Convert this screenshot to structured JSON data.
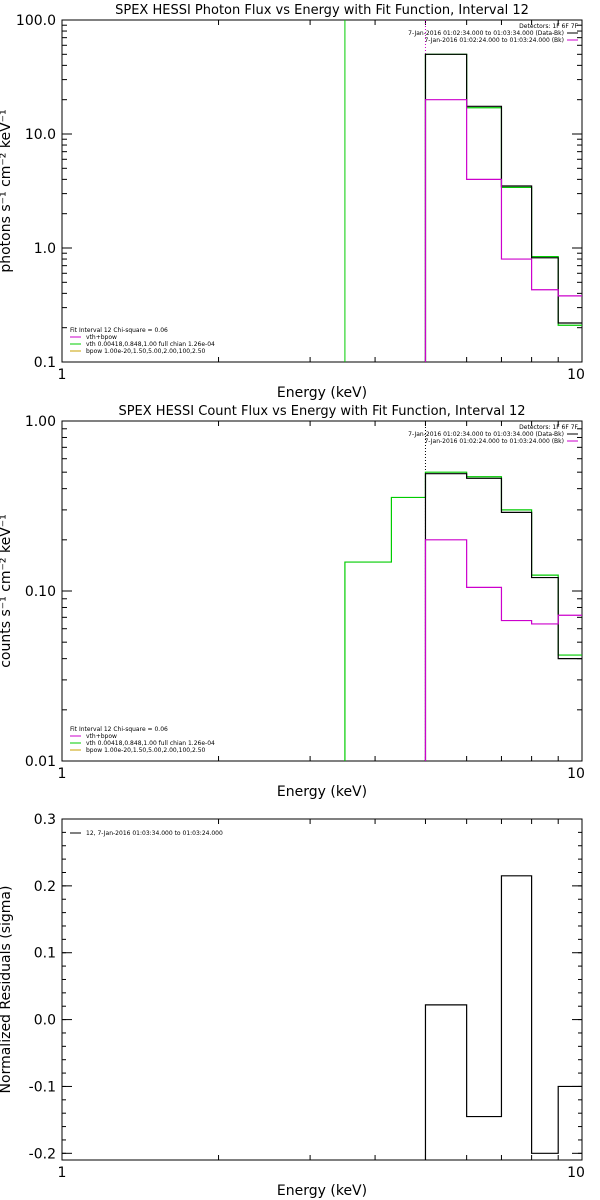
{
  "colors": {
    "data": "#000000",
    "model": "#00cc00",
    "vth": "#cc00cc",
    "bpow": "#c8a000",
    "bk": "#cc00cc"
  },
  "chart_data": [
    {
      "type": "line",
      "title": "SPEX HESSI Photon Flux vs Energy with Fit Function, Interval 12",
      "xlabel": "Energy (keV)",
      "ylabel": "photons s⁻¹ cm⁻² keV⁻¹",
      "xscale": "log",
      "yscale": "log",
      "xlim": [
        1,
        10
      ],
      "ylim": [
        0.1,
        100
      ],
      "x_ticks": [
        "1",
        "10"
      ],
      "y_ticks": [
        {
          "v": 100,
          "label": "100.0"
        },
        {
          "v": 10,
          "label": "10.0"
        },
        {
          "v": 1,
          "label": "1.0"
        },
        {
          "v": 0.1,
          "label": "0.1"
        }
      ],
      "legend_right": {
        "header": "Detectors: 1F 6F 7F",
        "entries": [
          {
            "text": "7-Jan-2016 01:02:34.000 to 01:03:34.000 (Data-Bk)",
            "color": "#000000"
          },
          {
            "text": "7-Jan-2016 01:02:24.000 to 01:03:24.000 (Bk)",
            "color": "#cc00cc"
          }
        ]
      },
      "legend_left": {
        "header": "Fit Interval 12   Chi-square = 0.06",
        "entries": [
          {
            "text": "vth+bpow",
            "color": "#cc00cc"
          },
          {
            "text": "vth 0.00418,0.848,1.00   full chian 1.26e-04",
            "color": "#00cc00"
          },
          {
            "text": "bpow 1.00e-20,1.50,5.00,2.00,100,2.50",
            "color": "#c8a000"
          }
        ]
      },
      "vlines": [
        {
          "x": 3.5,
          "color": "#00cc00"
        },
        {
          "x": 5.0,
          "color": "#cc00cc",
          "style": "dotted"
        }
      ],
      "series": [
        {
          "color": "#00cc00",
          "bins": [
            5.0,
            6.0,
            7.0,
            8.0,
            9.0,
            10.0
          ],
          "values": [
            50,
            17,
            3.4,
            0.84,
            0.21
          ]
        },
        {
          "color": "#000000",
          "bins": [
            5.0,
            6.0,
            7.0,
            8.0,
            9.0,
            10.0
          ],
          "values": [
            50,
            17.5,
            3.5,
            0.82,
            0.22
          ]
        },
        {
          "color": "#cc00cc",
          "bins": [
            5.0,
            6.0,
            7.0,
            8.0,
            9.0,
            10.0
          ],
          "values": [
            20,
            4.0,
            0.8,
            0.43,
            0.38
          ]
        }
      ]
    },
    {
      "type": "line",
      "title": "SPEX HESSI Count Flux vs Energy with Fit Function, Interval 12",
      "xlabel": "Energy (keV)",
      "ylabel": "counts s⁻¹ cm⁻² keV⁻¹",
      "xscale": "log",
      "yscale": "log",
      "xlim": [
        1,
        10
      ],
      "ylim": [
        0.01,
        1
      ],
      "x_ticks": [
        "1",
        "10"
      ],
      "y_ticks": [
        {
          "v": 1,
          "label": "1.00"
        },
        {
          "v": 0.1,
          "label": "0.10"
        },
        {
          "v": 0.01,
          "label": "0.01"
        }
      ],
      "legend_right": {
        "header": "Detectors: 1F 6F 7F",
        "entries": [
          {
            "text": "7-Jan-2016 01:02:34.000 to 01:03:34.000 (Data-Bk)",
            "color": "#000000"
          },
          {
            "text": "7-Jan-2016 01:02:24.000 to 01:03:24.000 (Bk)",
            "color": "#cc00cc"
          }
        ]
      },
      "legend_left": {
        "header": "Fit Interval 12   Chi-square = 0.06",
        "entries": [
          {
            "text": "vth+bpow",
            "color": "#cc00cc"
          },
          {
            "text": "vth 0.00418,0.848,1.00   full chian 1.26e-04",
            "color": "#00cc00"
          },
          {
            "text": "bpow 1.00e-20,1.50,5.00,2.00,100,2.50",
            "color": "#c8a000"
          }
        ]
      },
      "vlines": [
        {
          "x": 5.0,
          "color": "#000000",
          "style": "dotted"
        }
      ],
      "series": [
        {
          "color": "#00cc00",
          "bins": [
            3.5,
            4.3,
            5.0,
            6.0,
            7.0,
            8.0,
            9.0,
            10.0
          ],
          "values": [
            0.148,
            0.355,
            0.5,
            0.47,
            0.3,
            0.124,
            0.042
          ]
        },
        {
          "color": "#000000",
          "bins": [
            5.0,
            6.0,
            7.0,
            8.0,
            9.0,
            10.0
          ],
          "values": [
            0.49,
            0.46,
            0.29,
            0.12,
            0.04
          ]
        },
        {
          "color": "#cc00cc",
          "bins": [
            5.0,
            6.0,
            7.0,
            8.0,
            9.0,
            10.0
          ],
          "values": [
            0.2,
            0.105,
            0.067,
            0.064,
            0.072
          ]
        }
      ]
    },
    {
      "type": "line",
      "title": "",
      "xlabel": "Energy (keV)",
      "ylabel": "Normalized Residuals (sigma)",
      "xscale": "log",
      "yscale": "linear",
      "xlim": [
        1,
        10
      ],
      "ylim": [
        -0.21,
        0.3
      ],
      "x_ticks": [
        "1",
        "10"
      ],
      "y_ticks": [
        {
          "v": 0.3,
          "label": "0.3"
        },
        {
          "v": 0.2,
          "label": "0.2"
        },
        {
          "v": 0.1,
          "label": "0.1"
        },
        {
          "v": 0.0,
          "label": "0.0"
        },
        {
          "v": -0.1,
          "label": "-0.1"
        },
        {
          "v": -0.2,
          "label": "-0.2"
        }
      ],
      "legend_left": {
        "header": "",
        "entries": [
          {
            "text": "12, 7-Jan-2016 01:03:34.000 to 01:03:24.000",
            "color": "#000000"
          }
        ]
      },
      "series": [
        {
          "color": "#000000",
          "bins": [
            5.0,
            6.0,
            7.0,
            8.0,
            9.0,
            10.0
          ],
          "values": [
            0.022,
            -0.145,
            0.215,
            -0.2,
            -0.1
          ]
        }
      ]
    }
  ]
}
